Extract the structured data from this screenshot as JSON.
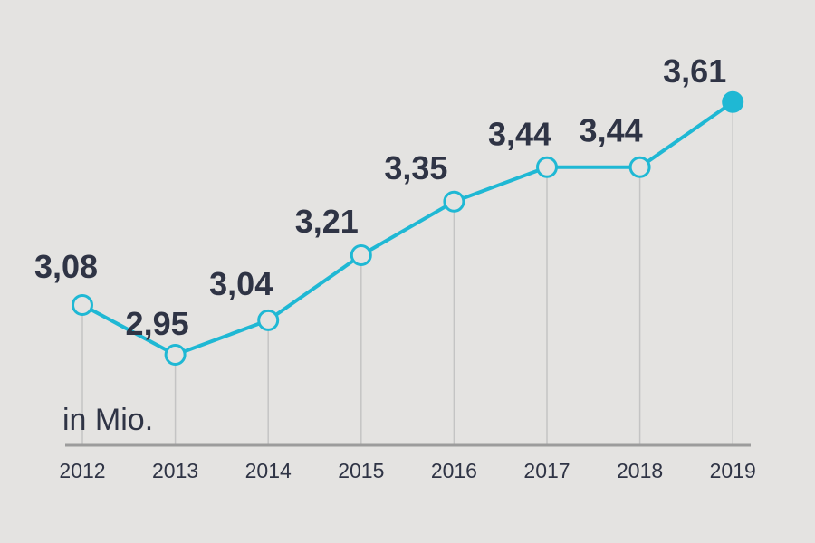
{
  "chart_data": {
    "type": "line",
    "categories": [
      "2012",
      "2013",
      "2014",
      "2015",
      "2016",
      "2017",
      "2018",
      "2019"
    ],
    "values": [
      3.08,
      2.95,
      3.04,
      3.21,
      3.35,
      3.44,
      3.44,
      3.61
    ],
    "data_labels": [
      "3,08",
      "2,95",
      "3,04",
      "3,21",
      "3,35",
      "3,44",
      "3,44",
      "3,61"
    ],
    "unit_label": "in Mio.",
    "colors": {
      "background": "#e4e3e1",
      "line": "#1fb8d4",
      "marker_fill": "#e4e3e1",
      "last_marker_fill": "#1fb8d4",
      "axis": "#9c9c9c",
      "gridline": "#c4c4c4",
      "text": "#2f3445"
    },
    "grid": "vertical drop lines at each category",
    "legend": "none"
  }
}
